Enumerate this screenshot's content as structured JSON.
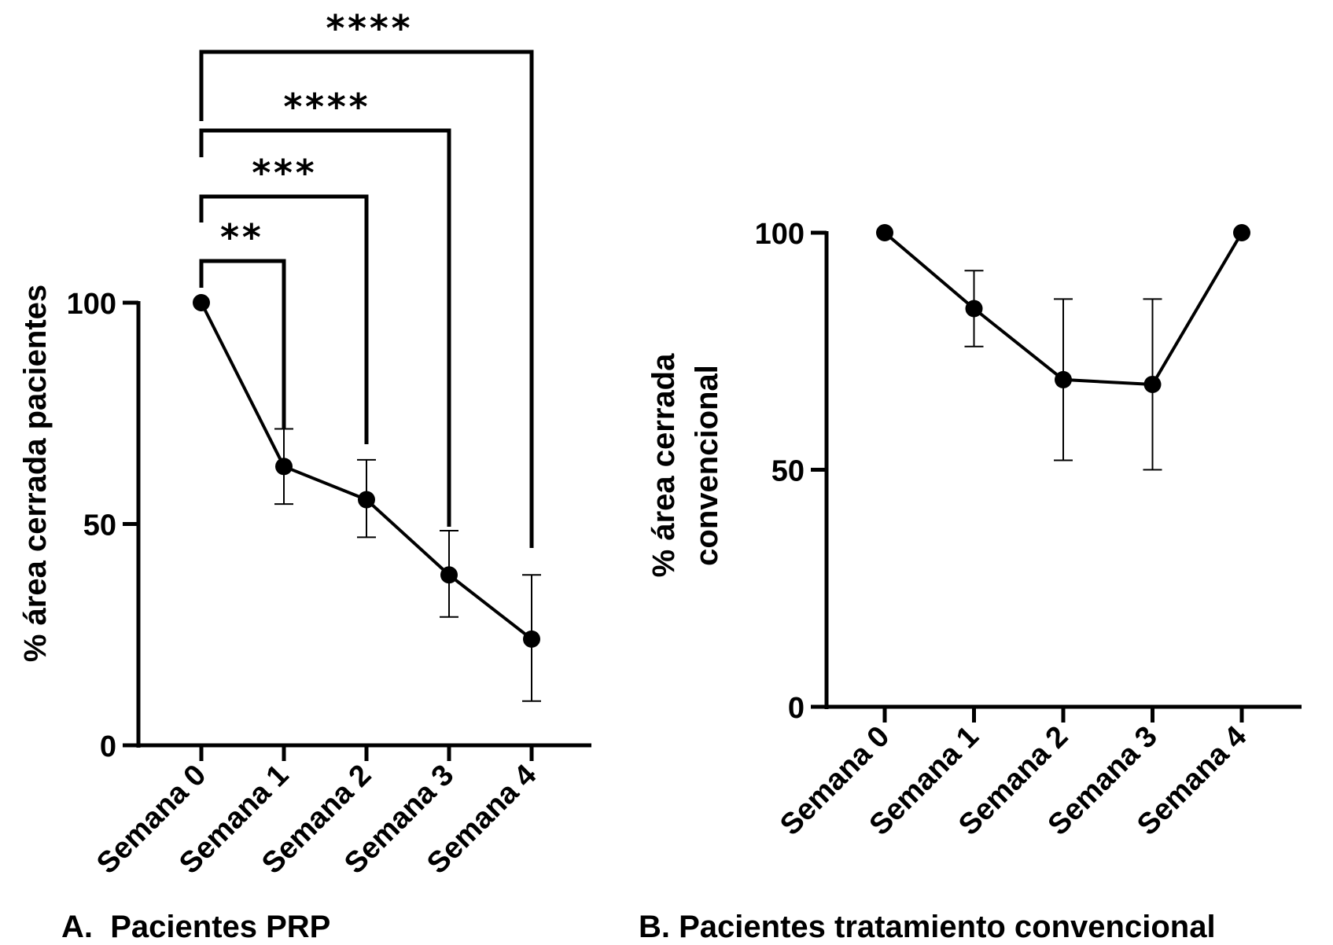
{
  "chart_data": [
    {
      "type": "line",
      "caption": "A.  Pacientes PRP",
      "ylabel": "% área cerrada pacientes",
      "xlabel": "",
      "categories": [
        "Semana 0",
        "Semana 1",
        "Semana 2",
        "Semana 3",
        "Semana 4"
      ],
      "series": [
        {
          "values": [
            100,
            63,
            55.5,
            38.5,
            24
          ],
          "error_upper": [
            100,
            71.5,
            64.5,
            48.5,
            38.5
          ],
          "error_lower": [
            100,
            54.5,
            47,
            29,
            10
          ]
        }
      ],
      "ylim": [
        0,
        100
      ],
      "yticks": [
        0,
        50,
        100
      ],
      "grid": false,
      "significance": [
        {
          "from": "Semana 0",
          "to": "Semana 1",
          "label": "**"
        },
        {
          "from": "Semana 0",
          "to": "Semana 2",
          "label": "***"
        },
        {
          "from": "Semana 0",
          "to": "Semana 3",
          "label": "****"
        },
        {
          "from": "Semana 0",
          "to": "Semana 4",
          "label": "****"
        }
      ],
      "line_color": "#000000"
    },
    {
      "type": "line",
      "caption": "B. Pacientes tratamiento convencional",
      "ylabel_lines": [
        "% área cerrada",
        "convencional"
      ],
      "xlabel": "",
      "categories": [
        "Semana 0",
        "Semana 1",
        "Semana 2",
        "Semana 3",
        "Semana 4"
      ],
      "series": [
        {
          "values": [
            100,
            84,
            69,
            68,
            100
          ],
          "error_upper": [
            100,
            92,
            86,
            86,
            100
          ],
          "error_lower": [
            100,
            76,
            52,
            50,
            100
          ]
        }
      ],
      "ylim": [
        0,
        100
      ],
      "yticks": [
        0,
        50,
        100
      ],
      "grid": false,
      "line_color": "#000000"
    }
  ]
}
